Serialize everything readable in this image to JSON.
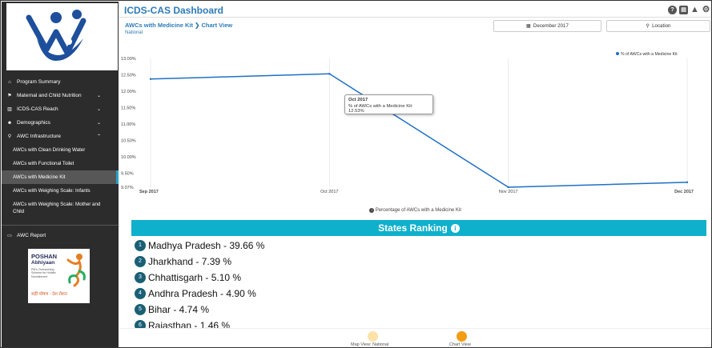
{
  "header": {
    "app_title": "ICDS-CAS Dashboard",
    "icons": [
      "help-icon",
      "print-icon",
      "warning-icon",
      "settings-icon"
    ]
  },
  "sidebar": {
    "items": [
      {
        "label": "Program Summary",
        "icon": "home-icon"
      },
      {
        "label": "Maternal and Child Nutrition",
        "icon": "flag-icon",
        "expandable": true
      },
      {
        "label": "ICDS-CAS Reach",
        "icon": "bar-chart-icon",
        "expandable": true
      },
      {
        "label": "Demographics",
        "icon": "users-icon",
        "expandable": true
      },
      {
        "label": "AWC Infrastructure",
        "icon": "map-pin-icon",
        "expandable": true
      }
    ],
    "sub_items": [
      {
        "label": "AWCs with Clean Drinking Water"
      },
      {
        "label": "AWCs with Functional Toilet"
      },
      {
        "label": "AWCs with Medicine Kit",
        "active": true
      },
      {
        "label": "AWCs with Weighing Scale: Infants"
      },
      {
        "label": "AWCs with Weighing Scale: Mother and Child"
      }
    ],
    "report": {
      "label": "AWC Report",
      "icon": "report-icon"
    },
    "poshan": {
      "title": "POSHAN",
      "subtitle": "Abhiyaan",
      "tagline": "PM's Overarching Scheme for Holistic Nourishment",
      "hindi": "सही पोषण - देश रोशन"
    }
  },
  "breadcrumb": {
    "section": "AWCs with Medicine Kit",
    "view": "Chart View",
    "level": "National"
  },
  "filters": {
    "date": "December 2017",
    "location": "Location"
  },
  "chart_data": {
    "type": "line",
    "x": [
      "Sep 2017",
      "Oct 2017",
      "Nov 2017",
      "Dec 2017"
    ],
    "series": [
      {
        "name": "% of AWCs with a Medicine Kit",
        "values": [
          12.37,
          12.53,
          9.07,
          9.22
        ],
        "color": "#1f6fc6"
      }
    ],
    "ylim": [
      9.07,
      13.0
    ],
    "yticks": [
      "9.07%",
      "9.50%",
      "10.00%",
      "10.50%",
      "11.00%",
      "11.50%",
      "12.00%",
      "12.50%",
      "13.00%"
    ],
    "legend": "top-right",
    "caption": "Percentage of AWCs with a Medicine Kit",
    "tooltip": {
      "title": "Oct 2017",
      "text": "% of AWCs with a Medicine Kit: 12.53%"
    }
  },
  "ranking": {
    "title": "States Ranking",
    "rows": [
      {
        "rank": "1",
        "text": "Madhya Pradesh - 39.66 %"
      },
      {
        "rank": "2",
        "text": "Jharkhand - 7.39 %"
      },
      {
        "rank": "3",
        "text": "Chhattisgarh - 5.10 %"
      },
      {
        "rank": "4",
        "text": "Andhra Pradesh - 4.90 %"
      },
      {
        "rank": "5",
        "text": "Bihar - 4.74 %"
      },
      {
        "rank": "6",
        "text": "Rajasthan - 1.46 %"
      }
    ]
  },
  "views": [
    {
      "label": "Map View: National",
      "color": "#fde3a7"
    },
    {
      "label": "Chart View",
      "color": "#f39c12"
    }
  ]
}
